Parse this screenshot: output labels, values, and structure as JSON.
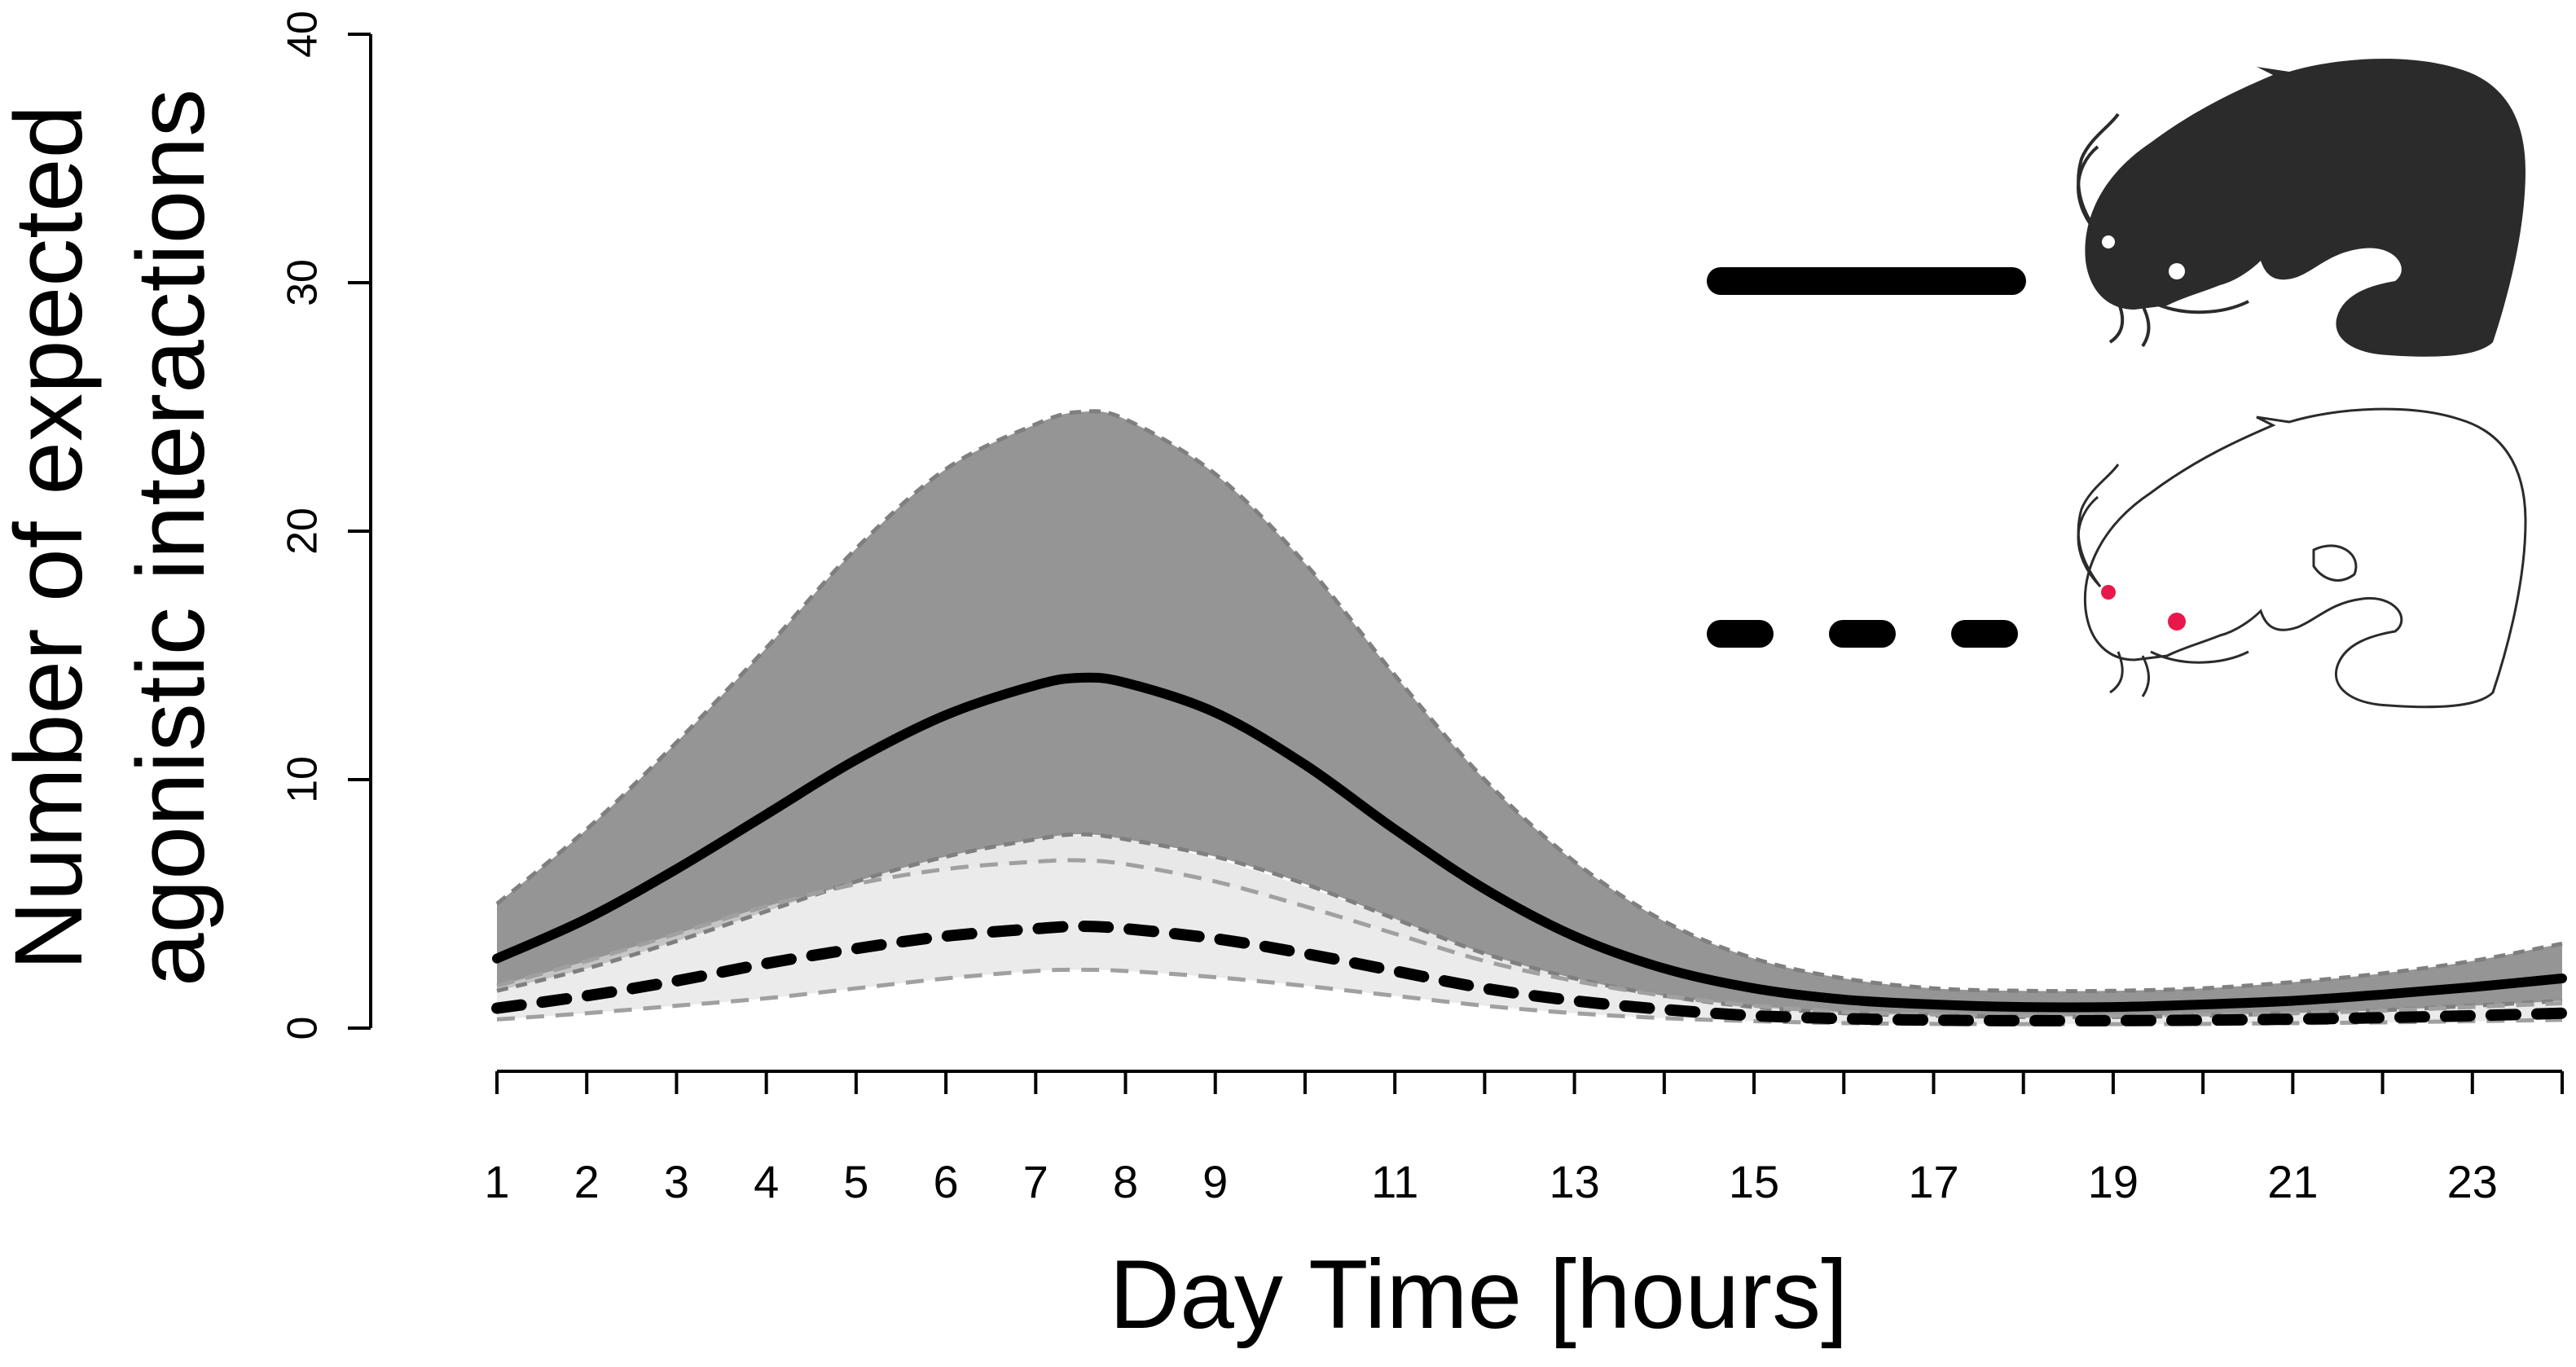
{
  "chart_data": {
    "type": "line",
    "xlabel": "Day Time [hours]",
    "ylabel": [
      "Number of expected",
      "agonistic interactions"
    ],
    "xlim": [
      1,
      24
    ],
    "ylim": [
      0,
      40
    ],
    "x_ticks": [
      1,
      2,
      3,
      4,
      5,
      6,
      7,
      8,
      9,
      10,
      11,
      12,
      13,
      14,
      15,
      16,
      17,
      18,
      19,
      20,
      21,
      22,
      23,
      24
    ],
    "x_tick_labels": [
      "1",
      "2",
      "3",
      "4",
      "5",
      "6",
      "7",
      "8",
      "9",
      "",
      "11",
      "",
      "13",
      "",
      "15",
      "",
      "17",
      "",
      "19",
      "",
      "21",
      "",
      "23",
      ""
    ],
    "y_ticks": [
      0,
      10,
      20,
      30,
      40
    ],
    "y_tick_labels": [
      "0",
      "10",
      "20",
      "30",
      "40"
    ],
    "x": [
      1,
      2,
      3,
      4,
      5,
      6,
      7,
      7.5,
      8,
      9,
      10,
      11,
      12,
      13,
      14,
      15,
      16,
      17,
      18,
      19,
      20,
      21,
      22,
      23,
      24
    ],
    "series": [
      {
        "style": "solid",
        "values": [
          2.8,
          4.4,
          6.4,
          8.6,
          10.8,
          12.6,
          13.8,
          14.1,
          13.9,
          12.7,
          10.6,
          8.0,
          5.6,
          3.7,
          2.4,
          1.6,
          1.15,
          0.95,
          0.85,
          0.85,
          0.95,
          1.1,
          1.35,
          1.65,
          2.0
        ],
        "ci_upper": [
          5.0,
          8.0,
          11.5,
          15.3,
          19.3,
          22.5,
          24.3,
          24.8,
          24.5,
          22.3,
          18.7,
          14.2,
          10.0,
          6.7,
          4.3,
          2.8,
          2.0,
          1.6,
          1.5,
          1.5,
          1.6,
          1.85,
          2.2,
          2.7,
          3.4
        ],
        "ci_lower": [
          1.5,
          2.4,
          3.5,
          4.7,
          5.9,
          6.9,
          7.6,
          7.8,
          7.6,
          6.9,
          5.8,
          4.4,
          3.0,
          2.0,
          1.3,
          0.85,
          0.6,
          0.5,
          0.45,
          0.45,
          0.5,
          0.6,
          0.72,
          0.9,
          1.1
        ],
        "color": "#000000",
        "band_color": "#959595"
      },
      {
        "style": "dashed",
        "values": [
          0.8,
          1.3,
          1.9,
          2.6,
          3.2,
          3.7,
          4.0,
          4.1,
          4.0,
          3.6,
          3.0,
          2.3,
          1.6,
          1.1,
          0.75,
          0.5,
          0.38,
          0.32,
          0.3,
          0.3,
          0.32,
          0.36,
          0.42,
          0.5,
          0.6
        ],
        "ci_upper": [
          1.7,
          2.7,
          3.8,
          4.9,
          5.8,
          6.4,
          6.7,
          6.75,
          6.6,
          5.9,
          4.9,
          3.8,
          2.7,
          1.9,
          1.3,
          0.9,
          0.65,
          0.55,
          0.5,
          0.5,
          0.55,
          0.6,
          0.7,
          0.85,
          1.0
        ],
        "ci_lower": [
          0.35,
          0.6,
          0.9,
          1.2,
          1.6,
          2.0,
          2.3,
          2.35,
          2.3,
          2.05,
          1.7,
          1.3,
          0.9,
          0.6,
          0.4,
          0.28,
          0.2,
          0.17,
          0.16,
          0.16,
          0.17,
          0.2,
          0.23,
          0.28,
          0.33
        ],
        "outer_upper": [
          1.9,
          3.0,
          4.3,
          5.6,
          6.7,
          7.4,
          7.7,
          7.75,
          7.6,
          6.8,
          5.7,
          4.4,
          3.1,
          2.2,
          1.5,
          1.0,
          0.75,
          0.65,
          0.6,
          0.6,
          0.65,
          0.7,
          0.8,
          0.95,
          1.1
        ],
        "color": "#000000",
        "band_color": "#e8e8e8"
      }
    ],
    "legend_placement": "top-right",
    "grid": false,
    "colors": {
      "dark_band": "#959595",
      "light_band": "#e8e8e8",
      "dark_fish": "#2b2b2b",
      "eye_red": "#e8194a"
    },
    "legend_icons": [
      "catfish-dark-silhouette-icon",
      "catfish-outline-icon"
    ]
  }
}
